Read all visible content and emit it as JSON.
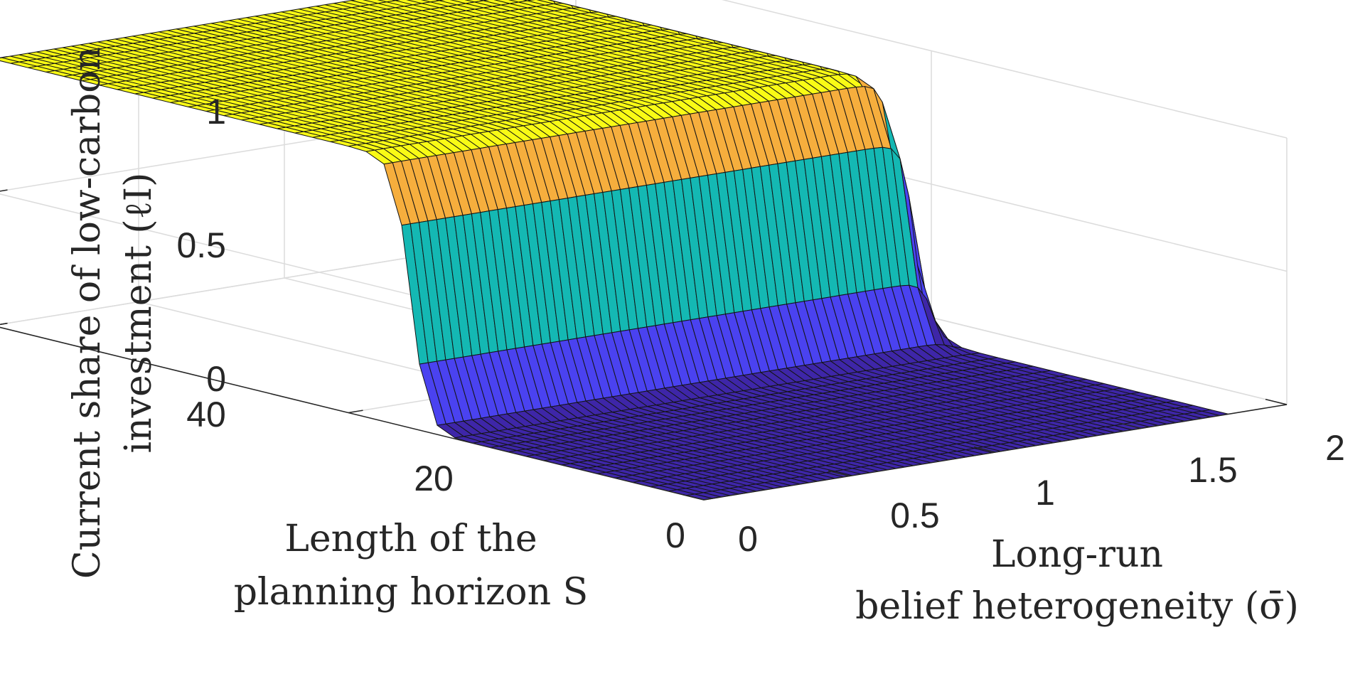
{
  "chart_data": {
    "type": "surface",
    "title": "",
    "xlabel": [
      "Long-run",
      "belief heterogeneity (σ̄)"
    ],
    "ylabel": [
      "Length of the",
      "planning horizon S"
    ],
    "zlabel": [
      "Current share of low-carbon",
      "investment (ℓI)"
    ],
    "xlim": [
      0,
      2
    ],
    "ylim": [
      0,
      40
    ],
    "zlim": [
      0,
      1
    ],
    "x_ticks": [
      "0",
      "0.5",
      "1",
      "1.5",
      "2"
    ],
    "y_ticks": [
      "0",
      "20",
      "40"
    ],
    "z_ticks": [
      "0",
      "0.5",
      "1"
    ],
    "colormap": [
      "#3e26a8",
      "#4a42f0",
      "#14b8b3",
      "#f6ae3d",
      "#f9fb15"
    ],
    "grid": true,
    "description_values": {
      "x_range_of_data": [
        0,
        1.8
      ],
      "plateau_value": 1,
      "floor_value": 0,
      "transition": "surface drops from 1 to 0 at sigma approx 1.75; at small S the value is 0 across sigma"
    }
  }
}
